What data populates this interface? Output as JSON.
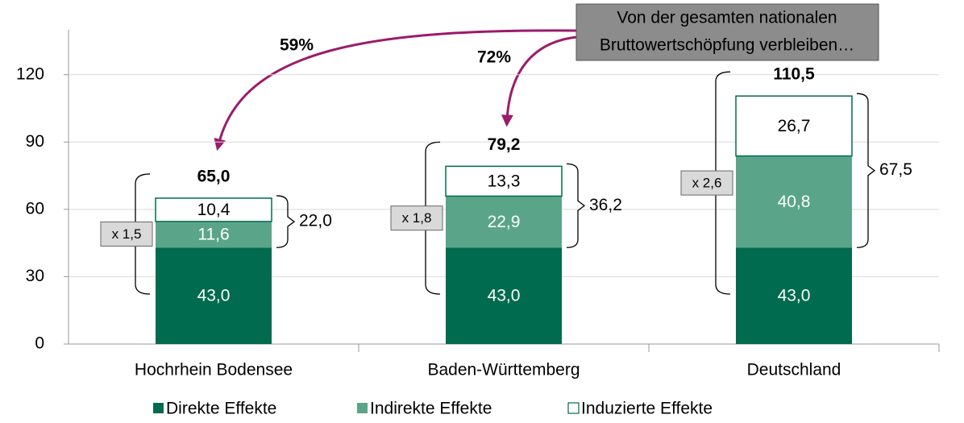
{
  "chart_data": {
    "type": "stacked-bar",
    "categories": [
      "Hochrhein Bodensee",
      "Baden-Württemberg",
      "Deutschland"
    ],
    "series": [
      {
        "name": "Direkte Effekte",
        "color": "#006b4f",
        "values": [
          43.0,
          43.0,
          43.0
        ],
        "value_labels": [
          "43,0",
          "43,0",
          "43,0"
        ]
      },
      {
        "name": "Indirekte Effekte",
        "color": "#5aa58a",
        "values": [
          11.6,
          22.9,
          40.8
        ],
        "value_labels": [
          "11,6",
          "22,9",
          "40,8"
        ]
      },
      {
        "name": "Induzierte Effekte",
        "color": "#ffffff",
        "values": [
          10.4,
          13.3,
          26.7
        ],
        "value_labels": [
          "10,4",
          "13,3",
          "26,7"
        ]
      }
    ],
    "totals": [
      65.0,
      79.2,
      110.5
    ],
    "total_labels": [
      "65,0",
      "79,2",
      "110,5"
    ],
    "bracket_labels": [
      "22,0",
      "36,2",
      "67,5"
    ],
    "multiplier_labels": [
      "x 1,5",
      "x 1,8",
      "x 2,6"
    ],
    "share_labels": [
      "59%",
      "72%"
    ],
    "callout": [
      "Von der gesamten nationalen",
      "Bruttowertschöpfung verbleiben…"
    ],
    "ylim": [
      0,
      140
    ],
    "yticks": [
      0,
      30,
      60,
      90,
      120
    ],
    "grid": true,
    "legend": "bottom"
  }
}
